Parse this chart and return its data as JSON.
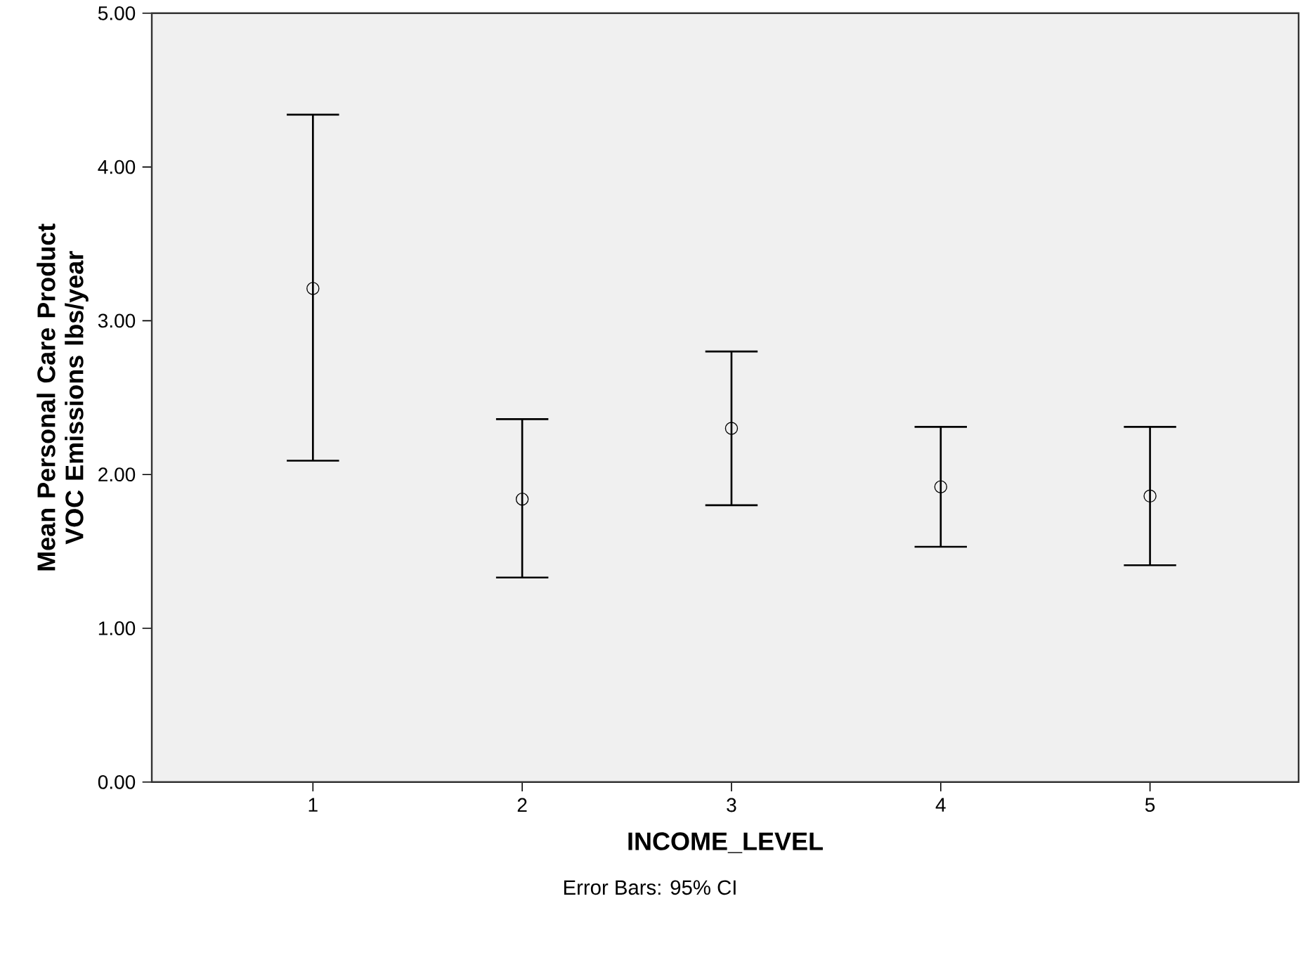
{
  "chart_data": {
    "type": "scatter",
    "categories": [
      "1",
      "2",
      "3",
      "4",
      "5"
    ],
    "values": [
      3.21,
      1.84,
      2.3,
      1.92,
      1.86
    ],
    "errors": [
      [
        2.09,
        4.34
      ],
      [
        1.33,
        2.36
      ],
      [
        1.8,
        2.8
      ],
      [
        1.53,
        2.31
      ],
      [
        1.41,
        2.31
      ]
    ],
    "color": "#000000",
    "marker": "circle",
    "ylim": [
      0,
      5
    ],
    "yticks": [
      {
        "value": 0,
        "label": "0.00"
      },
      {
        "value": 1,
        "label": "1.00"
      },
      {
        "value": 2,
        "label": "2.00"
      },
      {
        "value": 3,
        "label": "3.00"
      },
      {
        "value": 4,
        "label": "4.00"
      },
      {
        "value": 5,
        "label": "5.00"
      }
    ],
    "xlabel": "INCOME_LEVEL",
    "ylabel": "Mean Personal Care Product VOC Emissions lbs/year",
    "annotations": [
      "Error Bars: 95% CI"
    ]
  }
}
